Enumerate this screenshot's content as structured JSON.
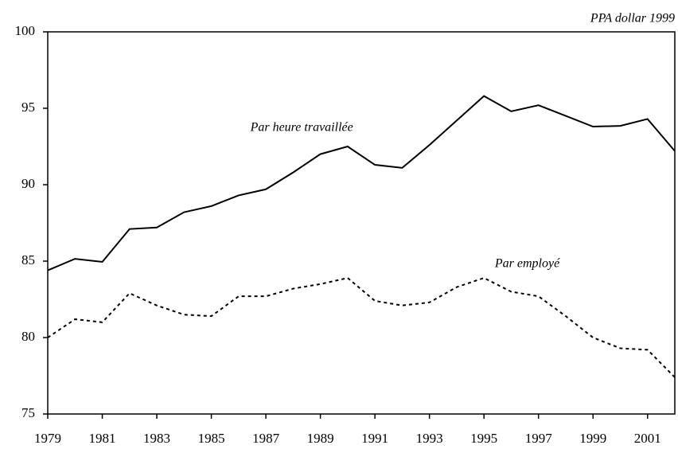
{
  "chart_data": {
    "type": "line",
    "unit_note": "PPA dollar 1999",
    "x": [
      1979,
      1980,
      1981,
      1982,
      1983,
      1984,
      1985,
      1986,
      1987,
      1988,
      1989,
      1990,
      1991,
      1992,
      1993,
      1994,
      1995,
      1996,
      1997,
      1998,
      1999,
      2000,
      2001,
      2002
    ],
    "xlim": [
      1979,
      2002
    ],
    "xticks": [
      1979,
      1981,
      1983,
      1985,
      1987,
      1989,
      1991,
      1993,
      1995,
      1997,
      1999,
      2001
    ],
    "ylim": [
      75,
      100
    ],
    "yticks": [
      75,
      80,
      85,
      90,
      95,
      100
    ],
    "series": [
      {
        "name": "Par heure travaillée",
        "color": "#000000",
        "dash": false,
        "values": [
          84.4,
          85.15,
          84.95,
          87.1,
          87.2,
          88.2,
          88.6,
          89.3,
          89.7,
          90.8,
          92.0,
          92.5,
          91.3,
          91.1,
          92.6,
          94.2,
          95.8,
          94.8,
          95.2,
          94.5,
          93.8,
          93.85,
          94.3,
          92.2
        ]
      },
      {
        "name": "Par employé",
        "color": "#000000",
        "dash": true,
        "values": [
          80.0,
          81.2,
          81.0,
          82.9,
          82.1,
          81.5,
          81.4,
          82.7,
          82.7,
          83.2,
          83.5,
          83.9,
          82.4,
          82.1,
          82.3,
          83.3,
          83.9,
          83.0,
          82.7,
          81.4,
          80.0,
          79.3,
          79.2,
          77.4
        ]
      }
    ]
  }
}
